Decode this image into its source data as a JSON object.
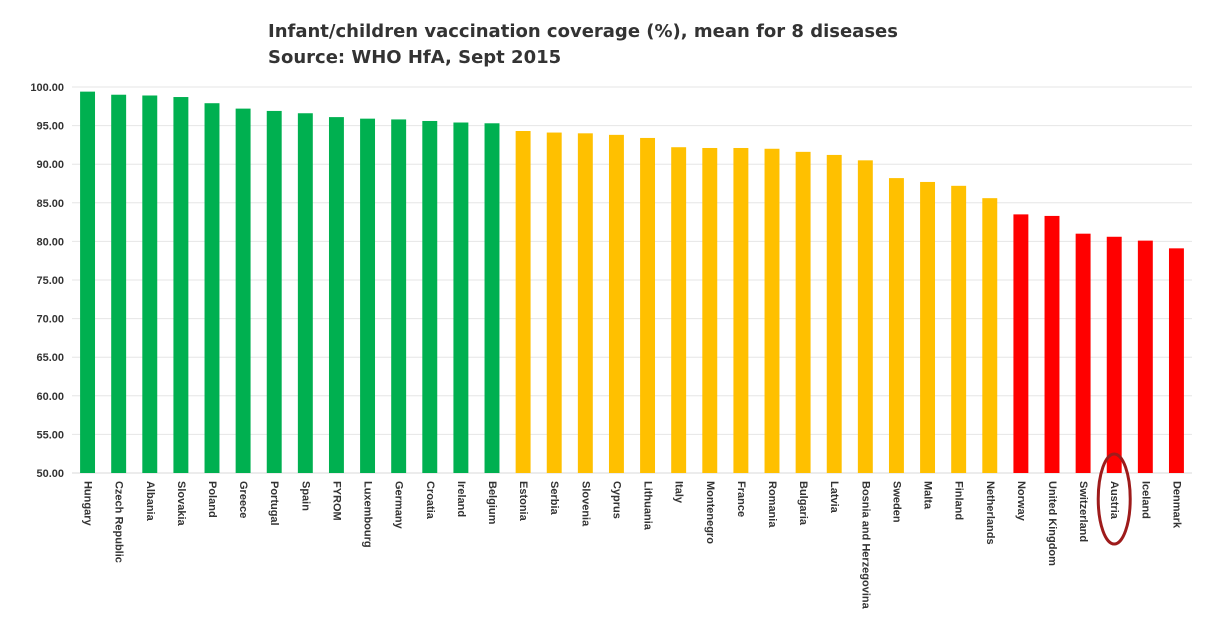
{
  "chart_data": {
    "type": "bar",
    "title": "Infant/children vaccination coverage (%), mean for 8 diseases",
    "subtitle": "Source: WHO HfA, Sept 2015",
    "xlabel": "",
    "ylabel": "",
    "ylim": [
      50,
      100
    ],
    "yticks": [
      "50.00",
      "55.00",
      "60.00",
      "65.00",
      "70.00",
      "75.00",
      "80.00",
      "85.00",
      "90.00",
      "95.00",
      "100.00"
    ],
    "grid": true,
    "legend": "none",
    "categories": [
      "Hungary",
      "Czech Republic",
      "Albania",
      "Slovakia",
      "Poland",
      "Greece",
      "Portugal",
      "Spain",
      "FYROM",
      "Luxembourg",
      "Germany",
      "Croatia",
      "Ireland",
      "Belgium",
      "Estonia",
      "Serbia",
      "Slovenia",
      "Cyprus",
      "Lithuania",
      "Italy",
      "Montenegro",
      "France",
      "Romania",
      "Bulgaria",
      "Latvia",
      "Bosnia and Herzegovina",
      "Sweden",
      "Malta",
      "Finland",
      "Netherlands",
      "Norway",
      "United Kingdom",
      "Switzerland",
      "Austria",
      "Iceland",
      "Denmark"
    ],
    "values": [
      99.4,
      99.0,
      98.9,
      98.7,
      97.9,
      97.2,
      96.9,
      96.6,
      96.1,
      95.9,
      95.8,
      95.6,
      95.4,
      95.3,
      94.3,
      94.1,
      94.0,
      93.8,
      93.4,
      92.2,
      92.1,
      92.1,
      92.0,
      91.6,
      91.2,
      90.5,
      88.2,
      87.7,
      87.2,
      85.6,
      83.5,
      83.3,
      81.0,
      80.6,
      80.1,
      79.1
    ],
    "colors": {
      "green": "#00b050",
      "yellow": "#ffc000",
      "red": "#ff0000",
      "grid": "#e6e6e6",
      "axis": "#d9d9d9",
      "text": "#333333",
      "highlight": "#9e1b1b"
    },
    "color_groups": {
      "green_end_index": 13,
      "yellow_end_index": 29
    },
    "highlight_category": "Austria"
  }
}
